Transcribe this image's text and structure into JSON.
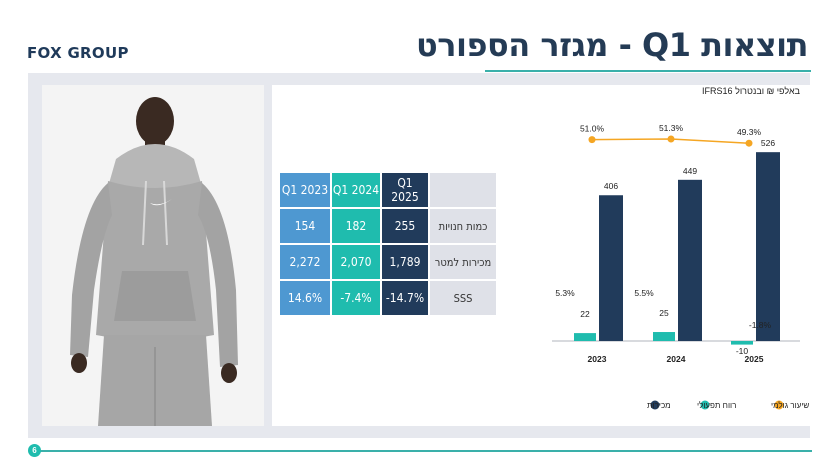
{
  "logo": "FOX GROUP",
  "title": "תוצאות Q1 - מגזר הספורט",
  "subtitle": "באלפי ₪ ובנטרול IFRS16",
  "page_number": "6",
  "table": {
    "headers": [
      "Q1 2023",
      "Q1 2024",
      "Q1 2025"
    ],
    "rows": [
      {
        "label": "כמות חנויות",
        "values": [
          "154",
          "182",
          "255"
        ]
      },
      {
        "label": "מכירות למטר",
        "values": [
          "2,272",
          "2,070",
          "1,789"
        ]
      },
      {
        "label": "SSS",
        "values": [
          "14.6%",
          "-7.4%",
          "-14.7%"
        ]
      }
    ]
  },
  "colors": {
    "sales": "#213b5b",
    "operating_profit": "#1fbcae",
    "gross_margin": "#f5a623",
    "col2023": "#4e98d1",
    "col2024": "#1fbcae",
    "col2025": "#213b5b"
  },
  "chart_data": {
    "type": "bar",
    "categories": [
      "2023",
      "2024",
      "2025"
    ],
    "series": [
      {
        "name": "מכירות",
        "values": [
          406,
          449,
          526
        ],
        "labels": [
          "406",
          "449",
          "526"
        ]
      },
      {
        "name": "רווח תפעולי",
        "values": [
          22,
          25,
          -10
        ],
        "labels": [
          "22",
          "25",
          "-10"
        ],
        "margin_labels": [
          "5.3%",
          "5.5%",
          "-1.8%"
        ]
      },
      {
        "name": "שיעור גולמי",
        "values": [
          51.0,
          51.3,
          49.3
        ],
        "labels": [
          "51.0%",
          "51.3%",
          "49.3%"
        ],
        "kind": "line"
      }
    ],
    "legend_position": "bottom",
    "grid": false
  }
}
